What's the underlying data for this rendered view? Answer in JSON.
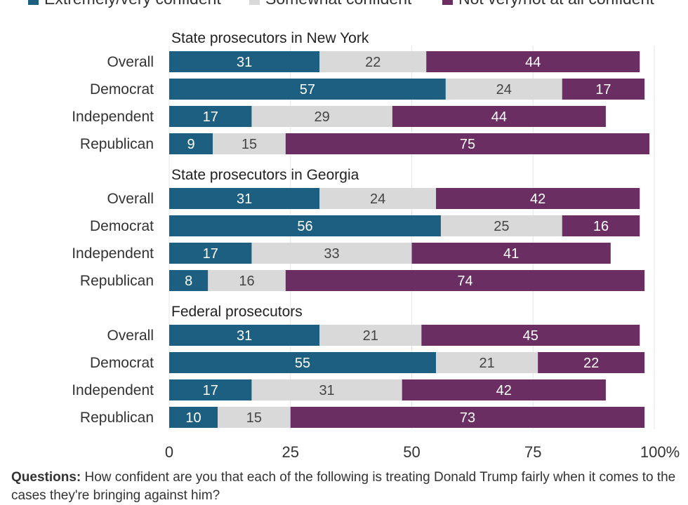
{
  "chart_data": {
    "type": "bar",
    "orientation": "horizontal",
    "stacked": true,
    "legend": {
      "position": "top",
      "entries": [
        {
          "name": "Extremely/very confident",
          "color": "#1d5f80"
        },
        {
          "name": "Somewhat confident",
          "color": "#d9d9d9"
        },
        {
          "name": "Not very/not at all confident",
          "color": "#6a2e63"
        }
      ]
    },
    "categories": [
      "Overall",
      "Democrat",
      "Independent",
      "Republican"
    ],
    "groups": [
      {
        "title": "State prosecutors in New York",
        "rows": [
          {
            "label": "Overall",
            "values": [
              31,
              22,
              44
            ]
          },
          {
            "label": "Democrat",
            "values": [
              57,
              24,
              17
            ]
          },
          {
            "label": "Independent",
            "values": [
              17,
              29,
              44
            ]
          },
          {
            "label": "Republican",
            "values": [
              9,
              15,
              75
            ]
          }
        ]
      },
      {
        "title": "State prosecutors in Georgia",
        "rows": [
          {
            "label": "Overall",
            "values": [
              31,
              24,
              42
            ]
          },
          {
            "label": "Democrat",
            "values": [
              56,
              25,
              16
            ]
          },
          {
            "label": "Independent",
            "values": [
              17,
              33,
              41
            ]
          },
          {
            "label": "Republican",
            "values": [
              8,
              16,
              74
            ]
          }
        ]
      },
      {
        "title": "Federal prosecutors",
        "rows": [
          {
            "label": "Overall",
            "values": [
              31,
              21,
              45
            ]
          },
          {
            "label": "Democrat",
            "values": [
              55,
              21,
              22
            ]
          },
          {
            "label": "Independent",
            "values": [
              17,
              31,
              42
            ]
          },
          {
            "label": "Republican",
            "values": [
              10,
              15,
              73
            ]
          }
        ]
      }
    ],
    "xlim": [
      0,
      100
    ],
    "xticks": [
      {
        "value": 0,
        "label": "0"
      },
      {
        "value": 25,
        "label": "25"
      },
      {
        "value": 50,
        "label": "50"
      },
      {
        "value": 75,
        "label": "75"
      },
      {
        "value": 100,
        "label": "100%"
      }
    ],
    "grid": true
  },
  "footnote": {
    "bold": "Questions:",
    "text": " How confident are you that each of the following is treating Donald Trump fairly when it comes to the cases they're bringing against him?"
  }
}
